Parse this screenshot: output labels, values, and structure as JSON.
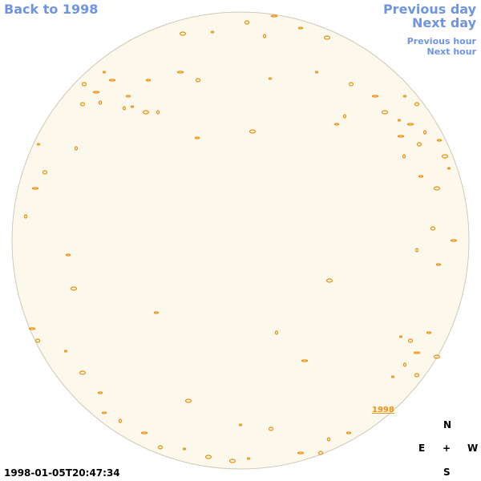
{
  "links": {
    "back": "Back to 1998",
    "previous_day": "Previous day",
    "next_day": "Next day",
    "previous_hour": "Previous hour",
    "next_hour": "Next hour"
  },
  "disk_label": "1998",
  "compass": {
    "north": "N",
    "east": "E",
    "center": "+",
    "west": "W",
    "south": "S"
  },
  "timestamp": "1998-01-05T20:47:34"
}
